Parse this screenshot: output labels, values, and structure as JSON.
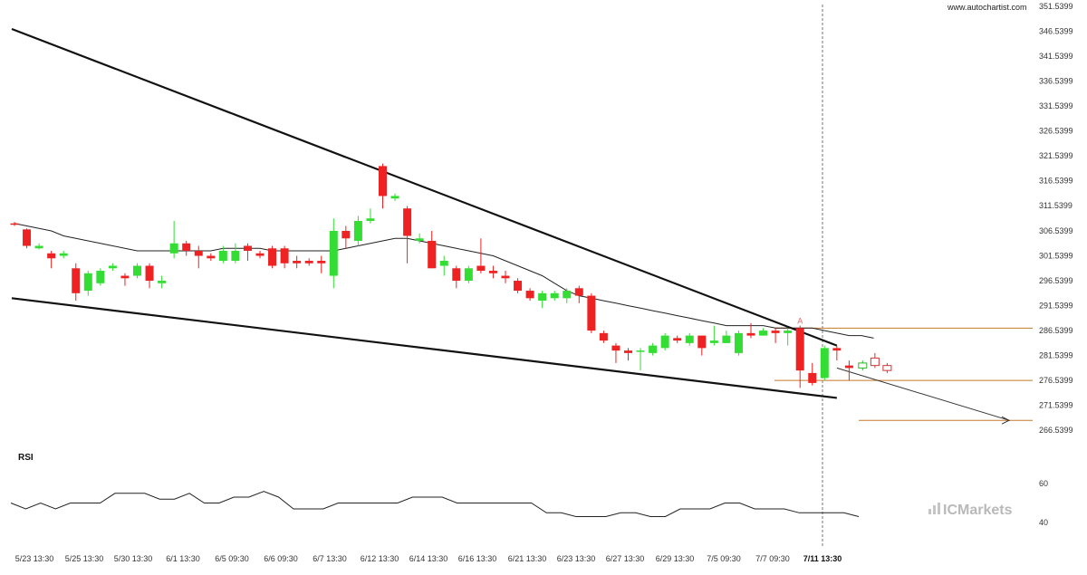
{
  "watermark": "www.autochartist.com",
  "brand": "ICMarkets",
  "rsi_title": "RSI",
  "pattern_marker": "A",
  "colors": {
    "bull": "#33dd33",
    "bear": "#ee2222",
    "trendline": "#111111",
    "ma": "#222222",
    "level": "#c8782a",
    "projection": "#333333",
    "rsi": "#222222",
    "cursor": "#777777",
    "forecast_bull": "#2db52d",
    "forecast_bear": "#d33333"
  },
  "chart_data": {
    "type": "candlestick",
    "price_axis": {
      "ticks": [
        "351.5399",
        "346.5399",
        "341.5399",
        "336.5399",
        "331.5399",
        "326.5399",
        "321.5399",
        "316.5399",
        "311.5399",
        "306.5399",
        "301.5399",
        "296.5399",
        "291.5399",
        "286.5399",
        "281.5399",
        "276.5399",
        "271.5399",
        "266.5399"
      ],
      "range": [
        265.0,
        352.0
      ]
    },
    "rsi_axis": {
      "ticks": [
        "60",
        "40"
      ],
      "range": [
        35,
        65
      ]
    },
    "date_labels": [
      "5/23 13:30",
      "5/25 13:30",
      "5/30 13:30",
      "6/1 13:30",
      "6/5 09:30",
      "6/6 09:30",
      "6/7 13:30",
      "6/12 13:30",
      "6/14 13:30",
      "6/16 13:30",
      "6/21 13:30",
      "6/23 13:30",
      "6/27 13:30",
      "6/29 13:30",
      "7/5 09:30",
      "7/7 09:30",
      "7/11 13:30"
    ],
    "date_label_bold_index": 16,
    "candles": [
      [
        308.0,
        307.8,
        308.3,
        307.5
      ],
      [
        306.8,
        303.5,
        307.0,
        303.0
      ],
      [
        303.0,
        303.5,
        304.0,
        302.8
      ],
      [
        302.0,
        301.0,
        302.5,
        299.0
      ],
      [
        301.5,
        302.0,
        302.5,
        301.0
      ],
      [
        299.0,
        294.0,
        300.0,
        292.5
      ],
      [
        294.5,
        298.0,
        298.5,
        293.5
      ],
      [
        296.0,
        298.5,
        299.0,
        295.5
      ],
      [
        299.0,
        299.5,
        300.0,
        298.5
      ],
      [
        297.5,
        297.0,
        298.0,
        295.5
      ],
      [
        297.5,
        299.5,
        300.0,
        297.0
      ],
      [
        299.5,
        296.5,
        300.0,
        295.0
      ],
      [
        296.0,
        296.5,
        297.5,
        295.0
      ],
      [
        302.0,
        304.0,
        308.5,
        301.0
      ],
      [
        304.0,
        302.5,
        304.5,
        301.5
      ],
      [
        302.5,
        301.5,
        303.5,
        299.0
      ],
      [
        301.5,
        301.0,
        302.0,
        300.5
      ],
      [
        300.5,
        302.5,
        303.5,
        300.0
      ],
      [
        300.5,
        302.5,
        304.0,
        300.0
      ],
      [
        303.5,
        302.5,
        304.0,
        300.5
      ],
      [
        302.0,
        301.5,
        302.5,
        301.0
      ],
      [
        303.0,
        299.5,
        303.5,
        299.0
      ],
      [
        303.0,
        300.0,
        303.5,
        299.0
      ],
      [
        300.5,
        300.0,
        301.5,
        299.0
      ],
      [
        300.5,
        300.0,
        301.0,
        299.5
      ],
      [
        300.5,
        300.0,
        301.5,
        298.0
      ],
      [
        297.5,
        306.5,
        309.0,
        295.0
      ],
      [
        306.5,
        305.0,
        307.5,
        303.0
      ],
      [
        304.5,
        308.5,
        309.5,
        303.5
      ],
      [
        308.5,
        309.0,
        311.0,
        308.0
      ],
      [
        319.5,
        313.5,
        320.0,
        311.0
      ],
      [
        313.0,
        313.5,
        314.0,
        312.5
      ],
      [
        311.0,
        305.5,
        311.5,
        300.0
      ],
      [
        304.5,
        305.0,
        306.0,
        304.0
      ],
      [
        304.5,
        299.0,
        306.5,
        299.0
      ],
      [
        299.5,
        300.5,
        301.5,
        297.5
      ],
      [
        299.0,
        296.5,
        299.5,
        295.0
      ],
      [
        296.5,
        299.0,
        299.5,
        296.0
      ],
      [
        299.5,
        298.5,
        305.0,
        298.0
      ],
      [
        298.5,
        298.0,
        299.5,
        297.0
      ],
      [
        297.5,
        297.0,
        298.5,
        296.0
      ],
      [
        296.5,
        294.5,
        297.0,
        294.0
      ],
      [
        294.5,
        293.0,
        295.0,
        292.5
      ],
      [
        292.5,
        294.0,
        294.5,
        291.0
      ],
      [
        293.0,
        294.0,
        294.5,
        292.5
      ],
      [
        293.0,
        294.5,
        295.0,
        292.0
      ],
      [
        295.0,
        293.5,
        295.5,
        292.0
      ],
      [
        293.5,
        286.5,
        294.0,
        286.0
      ],
      [
        286.0,
        284.5,
        286.5,
        284.0
      ],
      [
        283.5,
        282.5,
        284.0,
        280.0
      ],
      [
        282.5,
        282.0,
        283.0,
        280.5
      ],
      [
        282.5,
        282.5,
        283.0,
        278.5
      ],
      [
        282.0,
        283.5,
        284.0,
        281.5
      ],
      [
        283.0,
        285.5,
        286.0,
        282.5
      ],
      [
        285.0,
        284.5,
        285.5,
        284.0
      ],
      [
        284.0,
        285.5,
        286.0,
        283.5
      ],
      [
        285.5,
        283.0,
        285.5,
        281.5
      ],
      [
        284.0,
        284.5,
        287.5,
        283.5
      ],
      [
        284.0,
        285.5,
        286.5,
        284.0
      ],
      [
        282.0,
        286.0,
        286.5,
        281.5
      ],
      [
        286.0,
        285.5,
        288.0,
        285.0
      ],
      [
        285.5,
        286.5,
        287.0,
        285.5
      ],
      [
        286.5,
        286.0,
        287.0,
        284.0
      ],
      [
        286.0,
        286.5,
        287.0,
        283.5
      ],
      [
        287.0,
        278.5,
        287.5,
        275.0
      ],
      [
        278.0,
        276.0,
        280.0,
        275.5
      ],
      [
        277.0,
        283.0,
        283.5,
        276.5
      ],
      [
        283.0,
        282.5,
        283.5,
        280.5
      ],
      [
        279.5,
        279.0,
        280.5,
        276.5
      ]
    ],
    "forecast_candles": [
      [
        279.0,
        280.0,
        280.5,
        278.5
      ],
      [
        281.0,
        279.5,
        282.0,
        279.0
      ],
      [
        279.5,
        278.5,
        280.0,
        278.0
      ]
    ],
    "moving_average": [
      308.0,
      307.5,
      307.0,
      306.5,
      305.5,
      305.0,
      304.5,
      304.0,
      303.5,
      303.0,
      302.5,
      302.5,
      302.5,
      302.5,
      302.5,
      302.5,
      302.5,
      303.0,
      303.0,
      303.0,
      303.0,
      302.5,
      302.5,
      302.5,
      302.5,
      302.5,
      302.5,
      303.0,
      303.5,
      304.0,
      304.5,
      305.0,
      305.0,
      304.5,
      304.0,
      303.5,
      303.0,
      302.5,
      302.0,
      301.5,
      300.5,
      299.5,
      298.5,
      297.5,
      296.0,
      294.5,
      293.5,
      293.0,
      292.5,
      292.0,
      291.5,
      291.0,
      290.5,
      290.0,
      289.5,
      289.0,
      288.5,
      288.0,
      287.5,
      287.5,
      287.5,
      287.5,
      287.0,
      287.0,
      287.0,
      287.0,
      286.5,
      286.0,
      285.5,
      285.5,
      285.0
    ],
    "rsi": [
      50,
      47,
      50,
      47,
      50,
      50,
      50,
      55,
      55,
      55,
      52,
      52,
      55,
      50,
      50,
      53,
      53,
      56,
      53,
      47,
      47,
      47,
      50,
      50,
      50,
      50,
      50,
      53,
      53,
      53,
      50,
      50,
      50,
      50,
      50,
      50,
      45,
      45,
      43,
      43,
      43,
      45,
      45,
      43,
      43,
      47,
      47,
      47,
      50,
      50,
      47,
      47,
      47,
      45,
      45,
      45,
      45,
      43
    ],
    "resistance_line": {
      "from": [
        0,
        347.0
      ],
      "to": [
        67,
        283.5
      ]
    },
    "support_line": {
      "from": [
        0,
        293.0
      ],
      "to": [
        67,
        273.0
      ]
    },
    "levels": [
      287.0,
      276.5,
      268.5
    ],
    "projection": {
      "from": [
        67,
        279.0
      ],
      "to": [
        78.5,
        268.5
      ]
    }
  }
}
